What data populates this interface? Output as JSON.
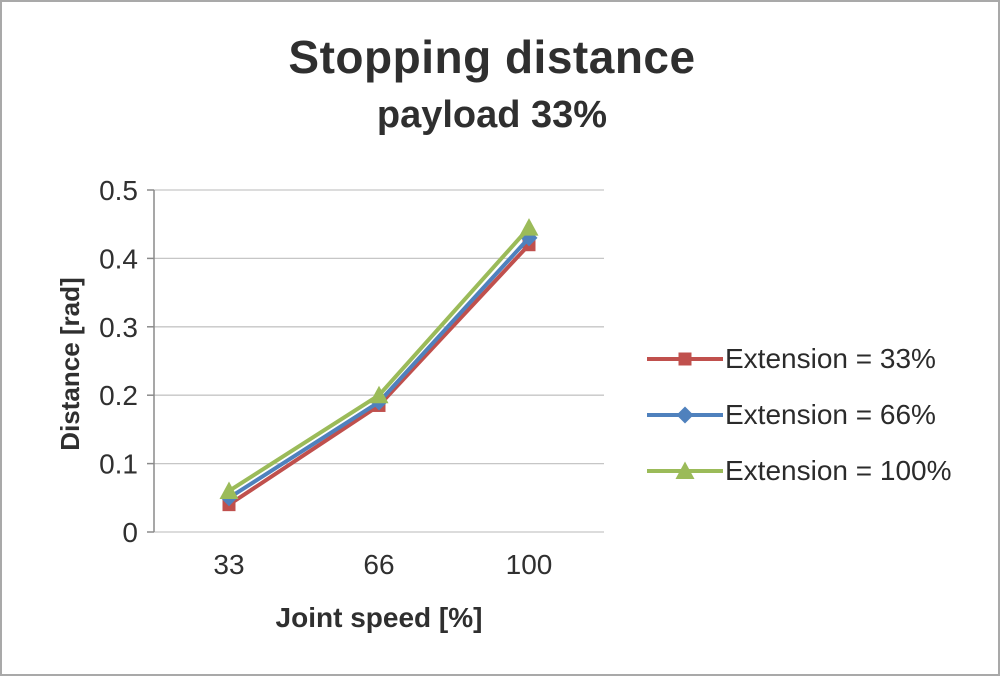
{
  "chart_data": {
    "type": "line",
    "title": "Stopping distance",
    "subtitle": "payload 33%",
    "xlabel": "Joint speed [%]",
    "ylabel": "Distance [rad]",
    "categories": [
      "33",
      "66",
      "100"
    ],
    "series": [
      {
        "name": "Extension = 33%",
        "marker": "square",
        "color": "#c0504d",
        "values": [
          0.04,
          0.185,
          0.42
        ]
      },
      {
        "name": "Extension = 66%",
        "marker": "diamond",
        "color": "#4f81bd",
        "values": [
          0.05,
          0.19,
          0.43
        ]
      },
      {
        "name": "Extension = 100%",
        "marker": "triangle",
        "color": "#9bbb59",
        "values": [
          0.06,
          0.2,
          0.445
        ]
      }
    ],
    "ylim": [
      0,
      0.5
    ],
    "yticks": [
      0,
      0.1,
      0.2,
      0.3,
      0.4,
      0.5
    ],
    "grid": true,
    "grid_color": "#c6c6c6",
    "axis_color": "#8a8a8a",
    "legend_position": "right"
  }
}
